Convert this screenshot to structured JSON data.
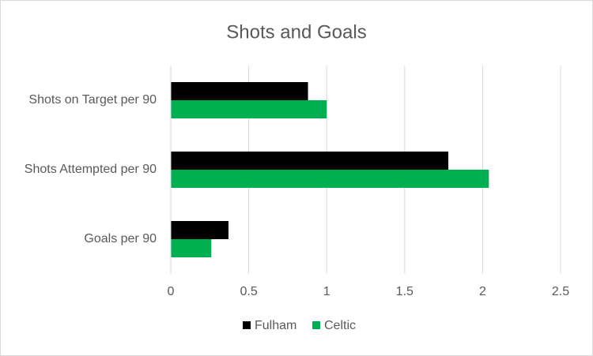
{
  "chart_data": {
    "type": "bar",
    "orientation": "horizontal",
    "title": "Shots and Goals",
    "categories": [
      "Shots on Target per 90",
      "Shots Attempted per 90",
      "Goals per 90"
    ],
    "series": [
      {
        "name": "Fulham",
        "color": "#000000",
        "values": [
          0.88,
          1.78,
          0.37
        ]
      },
      {
        "name": "Celtic",
        "color": "#00b050",
        "values": [
          1.0,
          2.04,
          0.26
        ]
      }
    ],
    "xlim": [
      0,
      2.5
    ],
    "xticks": [
      0,
      0.5,
      1,
      1.5,
      2,
      2.5
    ],
    "grid": true,
    "legend": "bottom"
  }
}
